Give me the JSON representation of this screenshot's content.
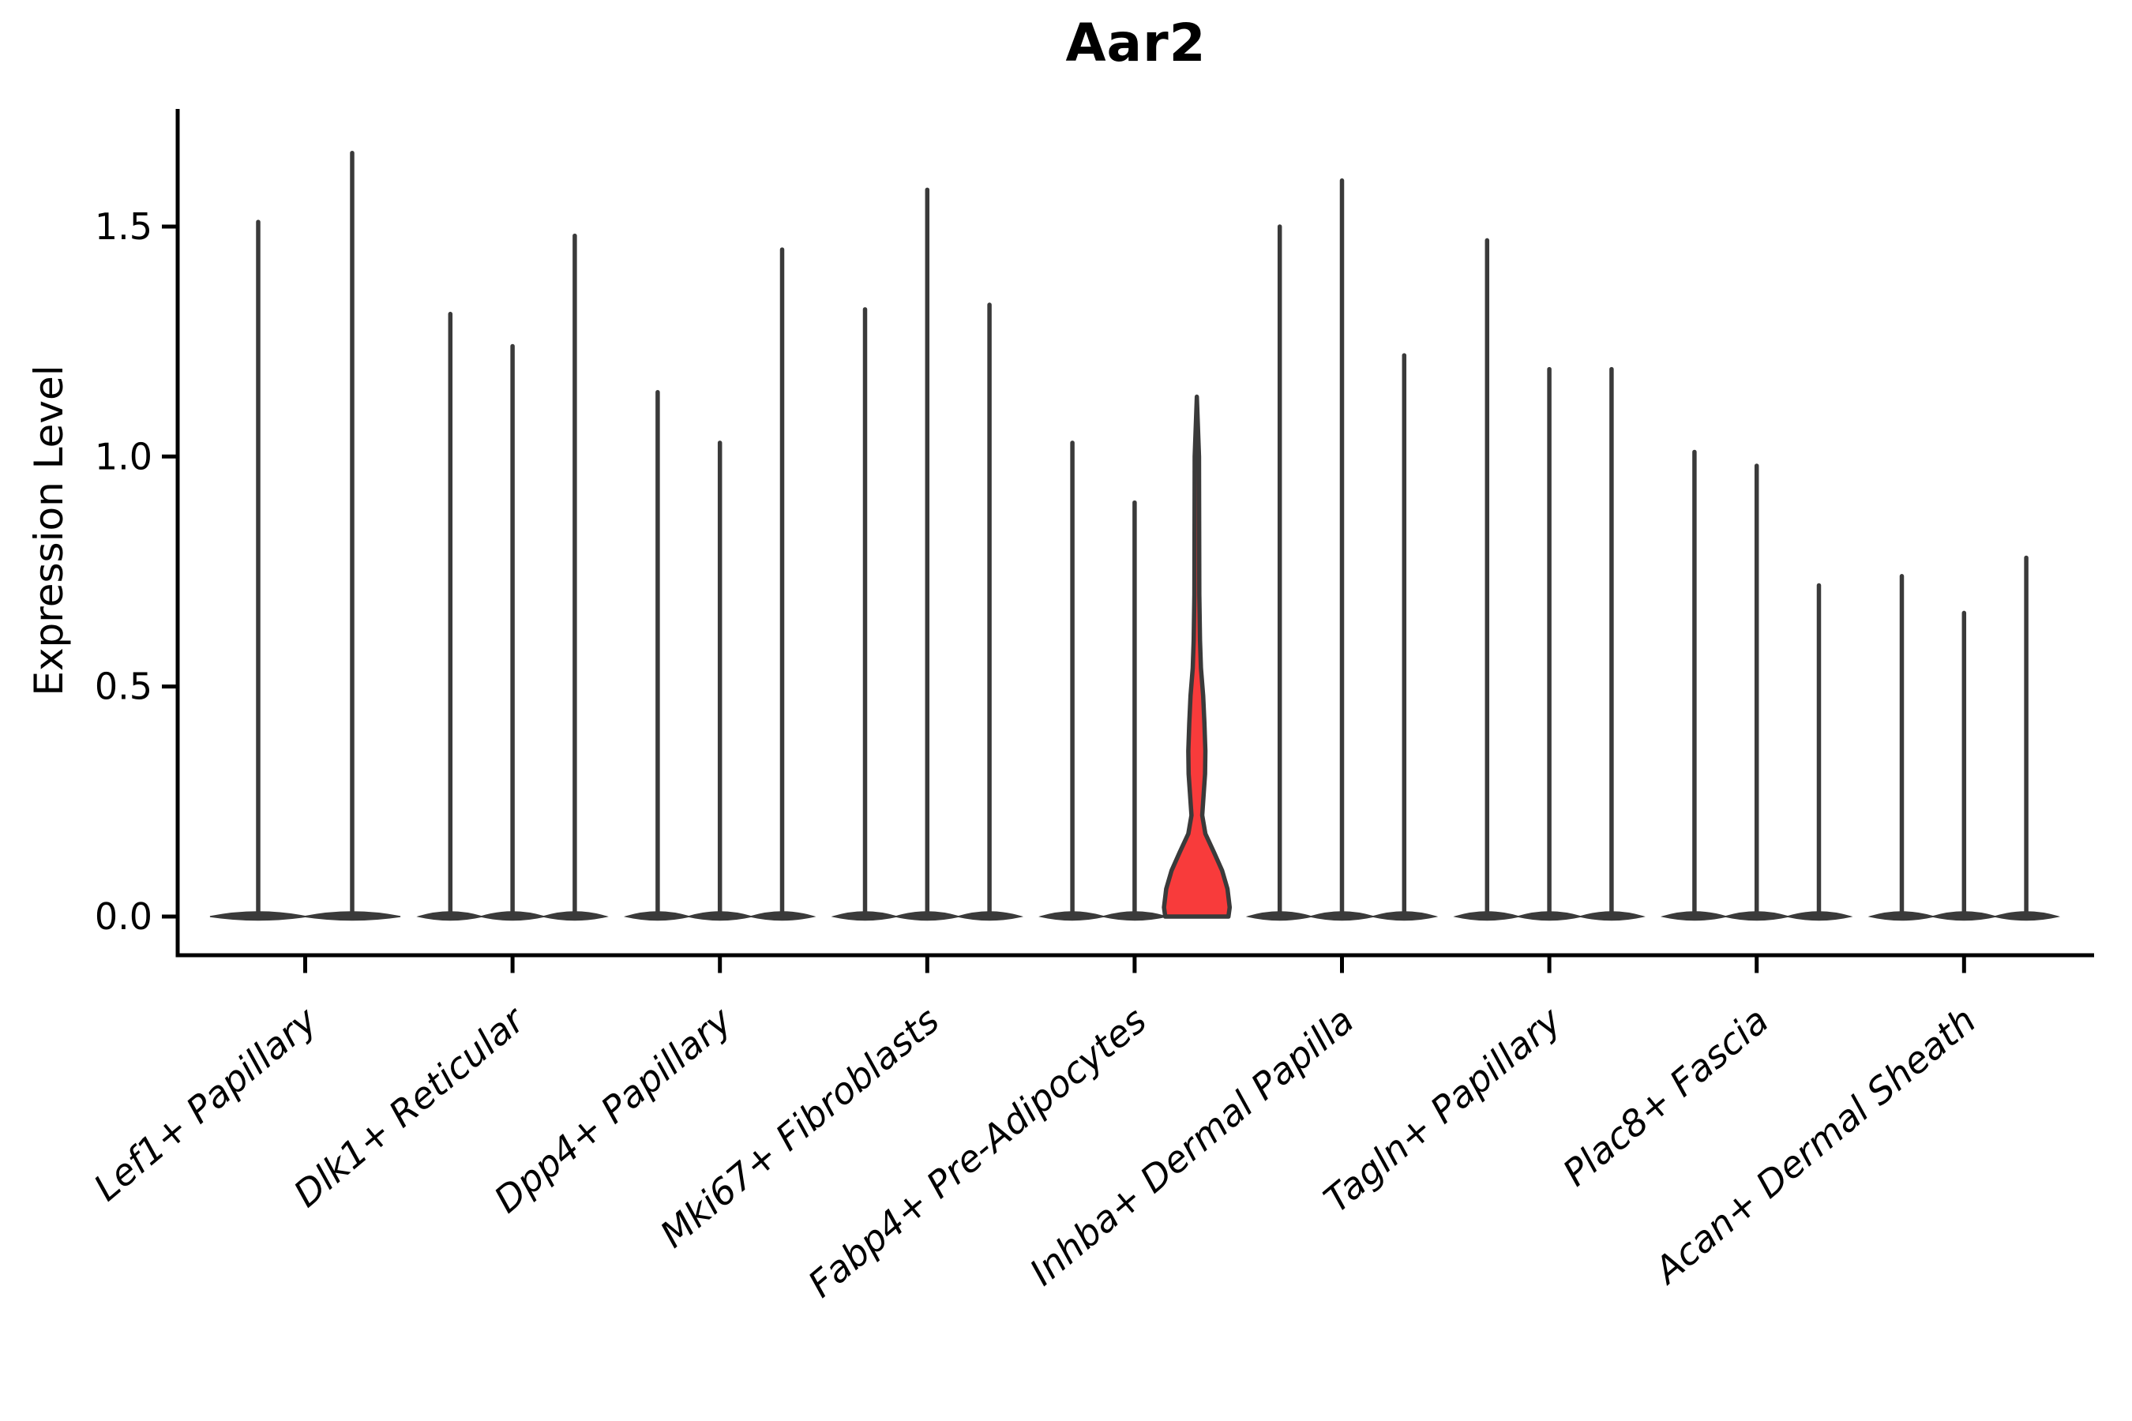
{
  "figure": {
    "title": "Aar2",
    "y_axis_label": "Expression Level"
  },
  "chart_data": {
    "type": "violin",
    "title": "Aar2",
    "xlabel": "",
    "ylabel": "Expression Level",
    "ylim": [
      -0.09,
      1.75
    ],
    "grid": false,
    "legend": "none",
    "ytick_values": [
      0.0,
      0.5,
      1.0,
      1.5
    ],
    "ytick_labels": [
      "0.0",
      "0.5",
      "1.0",
      "1.5"
    ],
    "violin_color": "#3a3a3a",
    "highlight_fill": "#f83b3b",
    "axis_color": "#000000",
    "groups": [
      {
        "label": "Lef1+ Papillary",
        "violin_maxes": [
          1.51,
          1.66
        ],
        "highlight_index": -1
      },
      {
        "label": "Dlk1+ Reticular",
        "violin_maxes": [
          1.31,
          1.24,
          1.48
        ],
        "highlight_index": -1
      },
      {
        "label": "Dpp4+ Papillary",
        "violin_maxes": [
          1.14,
          1.03,
          1.45
        ],
        "highlight_index": -1
      },
      {
        "label": "Mki67+ Fibroblasts",
        "violin_maxes": [
          1.32,
          1.58,
          1.33
        ],
        "highlight_index": -1
      },
      {
        "label": "Fabp4+ Pre-Adipocytes",
        "violin_maxes": [
          1.03,
          0.9,
          1.13
        ],
        "highlight_index": 2
      },
      {
        "label": "Inhba+ Dermal Papilla",
        "violin_maxes": [
          1.5,
          1.6,
          1.22
        ],
        "highlight_index": -1
      },
      {
        "label": "Tagln+ Papillary",
        "violin_maxes": [
          1.47,
          1.19,
          1.19
        ],
        "highlight_index": -1
      },
      {
        "label": "Plac8+ Fascia",
        "violin_maxes": [
          1.01,
          0.98,
          0.72
        ],
        "highlight_index": -1
      },
      {
        "label": "Acan+ Dermal Sheath",
        "violin_maxes": [
          0.74,
          0.66,
          0.78
        ],
        "highlight_index": -1
      }
    ],
    "highlight_profile": [
      [
        0.0,
        1.0
      ],
      [
        0.02,
        1.04
      ],
      [
        0.06,
        0.97
      ],
      [
        0.1,
        0.8
      ],
      [
        0.14,
        0.54
      ],
      [
        0.18,
        0.27
      ],
      [
        0.22,
        0.17
      ],
      [
        0.26,
        0.21
      ],
      [
        0.31,
        0.26
      ],
      [
        0.36,
        0.27
      ],
      [
        0.42,
        0.24
      ],
      [
        0.48,
        0.2
      ],
      [
        0.54,
        0.13
      ],
      [
        0.6,
        0.1
      ],
      [
        0.7,
        0.078
      ],
      [
        0.85,
        0.073
      ],
      [
        1.0,
        0.068
      ],
      [
        1.13,
        0.0
      ]
    ]
  }
}
